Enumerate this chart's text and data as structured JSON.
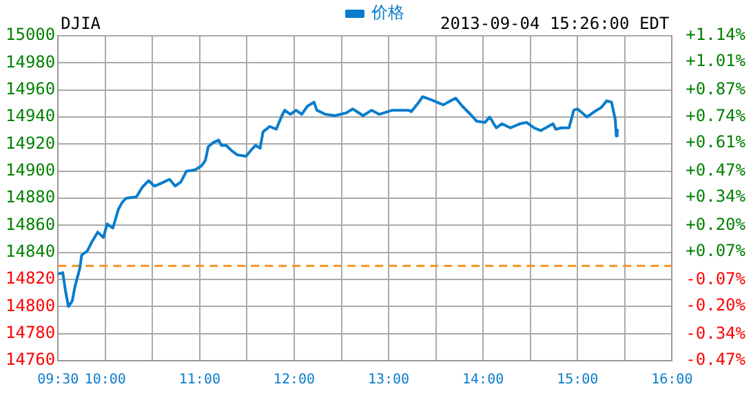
{
  "chart_data": {
    "type": "line",
    "title": "DJIA",
    "subtitle": "2013-09-04 15:26:00 EDT",
    "series": [
      {
        "name": "价格",
        "color": "#0a7ccc",
        "x": [
          9.5,
          9.55,
          9.58,
          9.61,
          9.65,
          9.68,
          9.73,
          9.75,
          9.81,
          9.86,
          9.92,
          9.98,
          10.02,
          10.08,
          10.14,
          10.18,
          10.22,
          10.33,
          10.39,
          10.46,
          10.52,
          10.59,
          10.68,
          10.74,
          10.8,
          10.86,
          10.95,
          11.02,
          11.06,
          11.09,
          11.14,
          11.2,
          11.23,
          11.28,
          11.34,
          11.4,
          11.49,
          11.55,
          11.59,
          11.64,
          11.67,
          11.74,
          11.81,
          11.87,
          11.9,
          11.96,
          12.02,
          12.08,
          12.14,
          12.21,
          12.24,
          12.33,
          12.43,
          12.55,
          12.62,
          12.73,
          12.82,
          12.9,
          13.04,
          13.21,
          13.24,
          13.31,
          13.36,
          13.44,
          13.51,
          13.58,
          13.63,
          13.71,
          13.78,
          13.88,
          13.93,
          14.02,
          14.07,
          14.14,
          14.2,
          14.29,
          14.39,
          14.46,
          14.54,
          14.61,
          14.69,
          14.74,
          14.77,
          14.83,
          14.91,
          14.96,
          15.0,
          15.1,
          15.18,
          15.25,
          15.31,
          15.36,
          15.4,
          15.41,
          15.42,
          15.43
        ],
        "values": [
          14824,
          14825,
          14811,
          14800,
          14804,
          14815,
          14828,
          14838,
          14841,
          14848,
          14855,
          14851,
          14861,
          14858,
          14872,
          14877,
          14880,
          14881,
          14888,
          14893,
          14889,
          14891,
          14894,
          14889,
          14892,
          14900,
          14901,
          14904,
          14908,
          14918,
          14921,
          14923,
          14919,
          14919,
          14915,
          14912,
          14911,
          14916,
          14919,
          14917,
          14929,
          14933,
          14931,
          14941,
          14945,
          14942,
          14945,
          14942,
          14948,
          14951,
          14945,
          14942,
          14941,
          14943,
          14946,
          14941,
          14945,
          14942,
          14945,
          14945,
          14944,
          14950,
          14955,
          14953,
          14951,
          14949,
          14951,
          14954,
          14948,
          14941,
          14937,
          14936,
          14940,
          14932,
          14935,
          14932,
          14935,
          14936,
          14932,
          14930,
          14933,
          14935,
          14931,
          14932,
          14932,
          14945,
          14946,
          14940,
          14944,
          14947,
          14952,
          14951,
          14938,
          14926,
          14930,
          14931
        ]
      }
    ],
    "xlim": [
      9.5,
      16
    ],
    "xticks": [
      {
        "value": 9.5,
        "label": "09:30"
      },
      {
        "value": 10,
        "label": "10:00"
      },
      {
        "value": 10.5,
        "label": null
      },
      {
        "value": 11,
        "label": "11:00"
      },
      {
        "value": 11.5,
        "label": null
      },
      {
        "value": 12,
        "label": "12:00"
      },
      {
        "value": 12.5,
        "label": null
      },
      {
        "value": 13,
        "label": "13:00"
      },
      {
        "value": 13.5,
        "label": null
      },
      {
        "value": 14,
        "label": "14:00"
      },
      {
        "value": 14.5,
        "label": null
      },
      {
        "value": 15,
        "label": "15:00"
      },
      {
        "value": 15.5,
        "label": null
      },
      {
        "value": 16,
        "label": "16:00"
      }
    ],
    "ylim": [
      14760,
      15000
    ],
    "yticks": [
      14760,
      14780,
      14800,
      14820,
      14840,
      14860,
      14880,
      14900,
      14920,
      14940,
      14960,
      14980,
      15000
    ],
    "y2lim": [
      -0.47,
      1.14
    ],
    "y2ticks": [
      {
        "value": -0.47,
        "label": "-0.47%"
      },
      {
        "value": -0.34,
        "label": "-0.34%"
      },
      {
        "value": -0.2,
        "label": "-0.20%"
      },
      {
        "value": -0.07,
        "label": "-0.07%"
      },
      {
        "value": 0.07,
        "label": "+0.07%"
      },
      {
        "value": 0.2,
        "label": "+0.20%"
      },
      {
        "value": 0.34,
        "label": "+0.34%"
      },
      {
        "value": 0.47,
        "label": "+0.47%"
      },
      {
        "value": 0.61,
        "label": "+0.61%"
      },
      {
        "value": 0.74,
        "label": "+0.74%"
      },
      {
        "value": 0.87,
        "label": "+0.87%"
      },
      {
        "value": 1.01,
        "label": "+1.01%"
      },
      {
        "value": 1.14,
        "label": "+1.14%"
      }
    ],
    "ref_lines": [
      {
        "axis": "y",
        "value": 14830,
        "color": "#f39322",
        "line_style": "dashed"
      }
    ],
    "grid": true,
    "legend": "top",
    "marker": "none",
    "line_style": "solid"
  }
}
